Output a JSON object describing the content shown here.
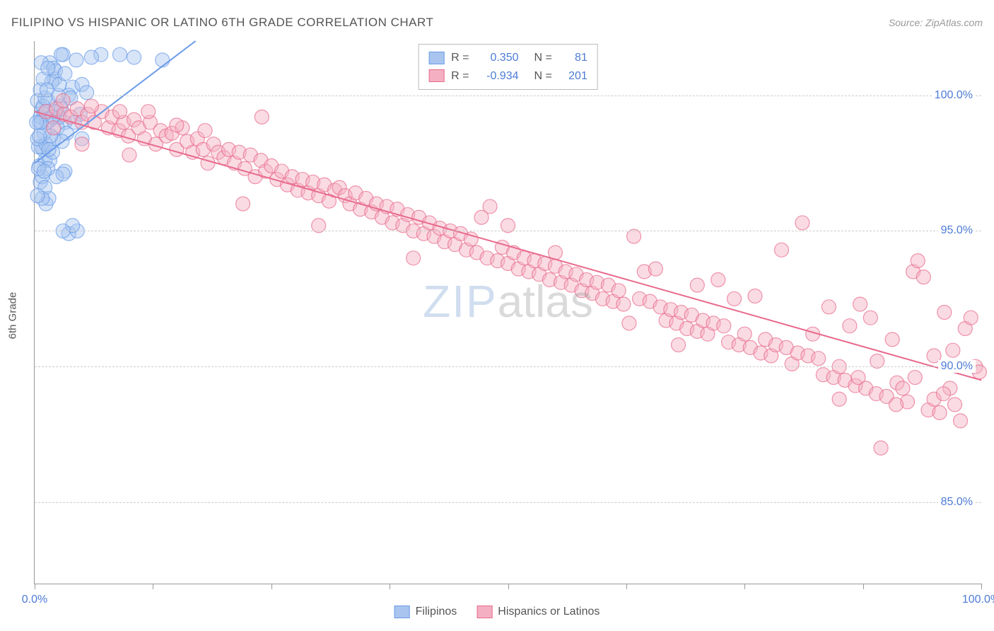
{
  "title": "FILIPINO VS HISPANIC OR LATINO 6TH GRADE CORRELATION CHART",
  "source": "Source: ZipAtlas.com",
  "ylabel": "6th Grade",
  "watermark": {
    "part1": "ZIP",
    "part2": "atlas"
  },
  "chart": {
    "type": "scatter",
    "background_color": "#ffffff",
    "grid_color": "#cccccc",
    "axis_color": "#999999",
    "label_color": "#4d7bd6",
    "text_color": "#555555",
    "xlim": [
      0,
      100
    ],
    "ylim": [
      82,
      102
    ],
    "xticks": [
      0,
      12.5,
      25,
      37.5,
      50,
      62.5,
      75,
      87.5,
      100
    ],
    "xtick_labels": {
      "0": "0.0%",
      "100": "100.0%"
    },
    "yticks": [
      85,
      90,
      95,
      100
    ],
    "ytick_labels": {
      "85": "85.0%",
      "90": "90.0%",
      "95": "95.0%",
      "100": "100.0%"
    },
    "marker_radius": 10,
    "marker_opacity": 0.45,
    "line_width": 2,
    "series": [
      {
        "name": "Filipinos",
        "color": "#6a9be8",
        "fill": "#a9c5ef",
        "R": "0.350",
        "N": "81",
        "trend": {
          "x1": 0,
          "y1": 97.5,
          "x2": 17,
          "y2": 102
        },
        "points": [
          [
            0.3,
            99.8
          ],
          [
            1.1,
            97.6
          ],
          [
            7.0,
            101.5
          ],
          [
            0.8,
            99.5
          ],
          [
            0.6,
            99.2
          ],
          [
            2.7,
            99.6
          ],
          [
            1.7,
            99.1
          ],
          [
            3.2,
            99.0
          ],
          [
            6.0,
            101.4
          ],
          [
            9.0,
            101.5
          ],
          [
            2.0,
            98.4
          ],
          [
            0.9,
            98.0
          ],
          [
            3.0,
            101.5
          ],
          [
            1.4,
            99.8
          ],
          [
            2.1,
            100.6
          ],
          [
            4.0,
            100.3
          ],
          [
            5.0,
            100.4
          ],
          [
            0.5,
            97.4
          ],
          [
            3.2,
            97.2
          ],
          [
            2.4,
            98.8
          ],
          [
            1.6,
            97.6
          ],
          [
            4.4,
            101.3
          ],
          [
            2.8,
            99.5
          ],
          [
            13.5,
            101.3
          ],
          [
            1.0,
            98.6
          ],
          [
            1.3,
            99.0
          ],
          [
            0.7,
            98.1
          ],
          [
            4.8,
            99.3
          ],
          [
            2.6,
            99.2
          ],
          [
            3.6,
            100.0
          ],
          [
            1.9,
            97.9
          ],
          [
            2.2,
            99.4
          ],
          [
            0.4,
            98.1
          ],
          [
            0.6,
            96.8
          ],
          [
            1.2,
            96.0
          ],
          [
            3.6,
            94.9
          ],
          [
            4.5,
            95.0
          ],
          [
            3.8,
            99.9
          ],
          [
            5.5,
            100.1
          ],
          [
            1.0,
            99.3
          ],
          [
            1.5,
            96.2
          ],
          [
            0.8,
            97.0
          ],
          [
            1.1,
            96.6
          ],
          [
            2.3,
            97.0
          ],
          [
            0.5,
            99.0
          ],
          [
            0.9,
            99.6
          ],
          [
            1.8,
            100.5
          ],
          [
            2.5,
            100.0
          ],
          [
            3.4,
            98.6
          ],
          [
            1.2,
            98.2
          ],
          [
            4.2,
            99.0
          ],
          [
            1.6,
            101.2
          ],
          [
            2.0,
            101.0
          ],
          [
            0.7,
            99.0
          ],
          [
            1.4,
            97.3
          ],
          [
            0.3,
            98.4
          ],
          [
            2.9,
            98.3
          ],
          [
            0.2,
            99.0
          ],
          [
            10.5,
            101.4
          ],
          [
            5.0,
            98.4
          ],
          [
            1.1,
            99.9
          ],
          [
            0.6,
            100.2
          ],
          [
            0.9,
            100.6
          ],
          [
            1.3,
            100.2
          ],
          [
            1.7,
            98.5
          ],
          [
            3.0,
            97.1
          ],
          [
            4.0,
            95.2
          ],
          [
            3.0,
            95.0
          ],
          [
            2.2,
            100.9
          ],
          [
            0.4,
            97.3
          ],
          [
            0.8,
            96.2
          ],
          [
            2.6,
            100.4
          ],
          [
            1.9,
            99.2
          ],
          [
            0.5,
            98.5
          ],
          [
            1.0,
            97.2
          ],
          [
            1.5,
            98.0
          ],
          [
            2.8,
            101.5
          ],
          [
            0.7,
            101.2
          ],
          [
            1.4,
            101.0
          ],
          [
            3.2,
            100.8
          ],
          [
            0.3,
            96.3
          ]
        ]
      },
      {
        "name": "Hispanics or Latinos",
        "color": "#e86a8c",
        "fill": "#f4b0c2",
        "R": "-0.934",
        "N": "201",
        "trend": {
          "x1": 0,
          "y1": 99.4,
          "x2": 100,
          "y2": 89.5
        },
        "points": [
          [
            1.2,
            99.4
          ],
          [
            2.3,
            99.5
          ],
          [
            3.1,
            99.3
          ],
          [
            3.8,
            99.2
          ],
          [
            4.5,
            99.5
          ],
          [
            5.0,
            99.0
          ],
          [
            5.6,
            99.3
          ],
          [
            6.3,
            99.0
          ],
          [
            7.1,
            99.4
          ],
          [
            7.8,
            98.8
          ],
          [
            8.2,
            99.2
          ],
          [
            8.9,
            98.7
          ],
          [
            9.4,
            99.0
          ],
          [
            9.9,
            98.5
          ],
          [
            10.5,
            99.1
          ],
          [
            11.0,
            98.8
          ],
          [
            11.6,
            98.4
          ],
          [
            12.2,
            99.0
          ],
          [
            12.8,
            98.2
          ],
          [
            13.3,
            98.7
          ],
          [
            13.9,
            98.5
          ],
          [
            14.5,
            98.6
          ],
          [
            15.0,
            98.0
          ],
          [
            15.6,
            98.8
          ],
          [
            16.1,
            98.3
          ],
          [
            16.7,
            97.9
          ],
          [
            17.2,
            98.4
          ],
          [
            17.8,
            98.0
          ],
          [
            18.3,
            97.5
          ],
          [
            18.9,
            98.2
          ],
          [
            19.4,
            97.9
          ],
          [
            20.0,
            97.7
          ],
          [
            20.5,
            98.0
          ],
          [
            21.1,
            97.5
          ],
          [
            21.6,
            97.9
          ],
          [
            22.2,
            97.3
          ],
          [
            22.8,
            97.8
          ],
          [
            23.3,
            97.0
          ],
          [
            23.9,
            97.6
          ],
          [
            24.4,
            97.2
          ],
          [
            25.0,
            97.4
          ],
          [
            25.6,
            96.9
          ],
          [
            26.1,
            97.2
          ],
          [
            26.7,
            96.7
          ],
          [
            27.2,
            97.0
          ],
          [
            27.8,
            96.5
          ],
          [
            28.3,
            96.9
          ],
          [
            28.9,
            96.4
          ],
          [
            29.4,
            96.8
          ],
          [
            30.0,
            96.3
          ],
          [
            30.6,
            96.7
          ],
          [
            31.1,
            96.1
          ],
          [
            31.7,
            96.5
          ],
          [
            32.2,
            96.6
          ],
          [
            32.8,
            96.3
          ],
          [
            33.3,
            96.0
          ],
          [
            33.9,
            96.4
          ],
          [
            34.4,
            95.8
          ],
          [
            35.0,
            96.2
          ],
          [
            35.6,
            95.7
          ],
          [
            36.1,
            96.0
          ],
          [
            36.7,
            95.5
          ],
          [
            37.2,
            95.9
          ],
          [
            37.8,
            95.3
          ],
          [
            38.3,
            95.8
          ],
          [
            38.9,
            95.2
          ],
          [
            39.4,
            95.6
          ],
          [
            40.0,
            95.0
          ],
          [
            40.6,
            95.5
          ],
          [
            41.1,
            94.9
          ],
          [
            41.7,
            95.3
          ],
          [
            42.2,
            94.8
          ],
          [
            42.8,
            95.1
          ],
          [
            43.3,
            94.6
          ],
          [
            43.9,
            95.0
          ],
          [
            44.4,
            94.5
          ],
          [
            45.0,
            94.9
          ],
          [
            45.6,
            94.3
          ],
          [
            46.1,
            94.7
          ],
          [
            46.7,
            94.2
          ],
          [
            47.2,
            95.5
          ],
          [
            47.8,
            94.0
          ],
          [
            48.1,
            95.9
          ],
          [
            48.9,
            93.9
          ],
          [
            49.4,
            94.4
          ],
          [
            50.0,
            93.8
          ],
          [
            50.6,
            94.2
          ],
          [
            51.1,
            93.6
          ],
          [
            51.7,
            94.0
          ],
          [
            52.2,
            93.5
          ],
          [
            52.8,
            93.9
          ],
          [
            53.3,
            93.4
          ],
          [
            53.9,
            93.8
          ],
          [
            54.4,
            93.2
          ],
          [
            55.0,
            93.7
          ],
          [
            55.6,
            93.1
          ],
          [
            56.1,
            93.5
          ],
          [
            56.7,
            93.0
          ],
          [
            57.2,
            93.4
          ],
          [
            57.8,
            92.8
          ],
          [
            58.3,
            93.2
          ],
          [
            58.9,
            92.7
          ],
          [
            59.4,
            93.1
          ],
          [
            60.0,
            92.5
          ],
          [
            60.6,
            93.0
          ],
          [
            61.1,
            92.4
          ],
          [
            61.7,
            92.8
          ],
          [
            62.2,
            92.3
          ],
          [
            62.8,
            91.6
          ],
          [
            63.3,
            94.8
          ],
          [
            63.9,
            92.5
          ],
          [
            64.4,
            93.5
          ],
          [
            65.0,
            92.4
          ],
          [
            65.6,
            93.6
          ],
          [
            66.1,
            92.2
          ],
          [
            66.7,
            91.7
          ],
          [
            67.2,
            92.1
          ],
          [
            67.8,
            91.6
          ],
          [
            68.3,
            92.0
          ],
          [
            68.9,
            91.4
          ],
          [
            69.4,
            91.9
          ],
          [
            70.0,
            91.3
          ],
          [
            70.6,
            91.7
          ],
          [
            71.1,
            91.2
          ],
          [
            71.7,
            91.6
          ],
          [
            72.2,
            93.2
          ],
          [
            72.8,
            91.5
          ],
          [
            73.3,
            90.9
          ],
          [
            73.9,
            92.5
          ],
          [
            74.4,
            90.8
          ],
          [
            75.0,
            91.2
          ],
          [
            75.6,
            90.7
          ],
          [
            76.1,
            92.6
          ],
          [
            76.7,
            90.5
          ],
          [
            77.2,
            91.0
          ],
          [
            77.8,
            90.4
          ],
          [
            78.3,
            90.8
          ],
          [
            78.9,
            94.3
          ],
          [
            79.4,
            90.7
          ],
          [
            80.0,
            90.1
          ],
          [
            80.6,
            90.5
          ],
          [
            81.1,
            95.3
          ],
          [
            81.7,
            90.4
          ],
          [
            82.2,
            91.2
          ],
          [
            82.8,
            90.3
          ],
          [
            83.3,
            89.7
          ],
          [
            83.9,
            92.2
          ],
          [
            84.4,
            89.6
          ],
          [
            85.0,
            90.0
          ],
          [
            85.6,
            89.5
          ],
          [
            86.1,
            91.5
          ],
          [
            86.7,
            89.3
          ],
          [
            87.2,
            92.3
          ],
          [
            87.8,
            89.2
          ],
          [
            88.3,
            91.8
          ],
          [
            88.9,
            89.0
          ],
          [
            89.4,
            87.0
          ],
          [
            90.0,
            88.9
          ],
          [
            90.6,
            91.0
          ],
          [
            91.1,
            89.4
          ],
          [
            91.7,
            89.2
          ],
          [
            92.2,
            88.7
          ],
          [
            92.8,
            93.5
          ],
          [
            93.3,
            93.9
          ],
          [
            93.9,
            93.3
          ],
          [
            94.4,
            88.4
          ],
          [
            95.0,
            88.8
          ],
          [
            95.6,
            88.3
          ],
          [
            96.1,
            92.0
          ],
          [
            96.7,
            89.2
          ],
          [
            97.2,
            88.6
          ],
          [
            97.8,
            88.0
          ],
          [
            98.3,
            91.4
          ],
          [
            98.9,
            91.8
          ],
          [
            99.4,
            90.0
          ],
          [
            99.8,
            89.8
          ],
          [
            97.0,
            90.6
          ],
          [
            95.0,
            90.4
          ],
          [
            93.0,
            89.6
          ],
          [
            91.0,
            88.6
          ],
          [
            89.0,
            90.2
          ],
          [
            87.0,
            89.6
          ],
          [
            85.0,
            88.8
          ],
          [
            30.0,
            95.2
          ],
          [
            22.0,
            96.0
          ],
          [
            12.0,
            99.4
          ],
          [
            6.0,
            99.6
          ],
          [
            3.0,
            99.8
          ],
          [
            9.0,
            99.4
          ],
          [
            15.0,
            98.9
          ],
          [
            18.0,
            98.7
          ],
          [
            40.0,
            94.0
          ],
          [
            55.0,
            94.2
          ],
          [
            70.0,
            93.0
          ],
          [
            68.0,
            90.8
          ],
          [
            50.0,
            95.2
          ],
          [
            24.0,
            99.2
          ],
          [
            10.0,
            97.8
          ],
          [
            5.0,
            98.2
          ],
          [
            2.0,
            98.8
          ],
          [
            96.0,
            89.0
          ]
        ]
      }
    ]
  },
  "bottom_legend": [
    {
      "label": "Filipinos",
      "fill": "#a9c5ef",
      "stroke": "#6a9be8"
    },
    {
      "label": "Hispanics or Latinos",
      "fill": "#f4b0c2",
      "stroke": "#e86a8c"
    }
  ],
  "legend_labels": {
    "R": "R =",
    "N": "N ="
  }
}
